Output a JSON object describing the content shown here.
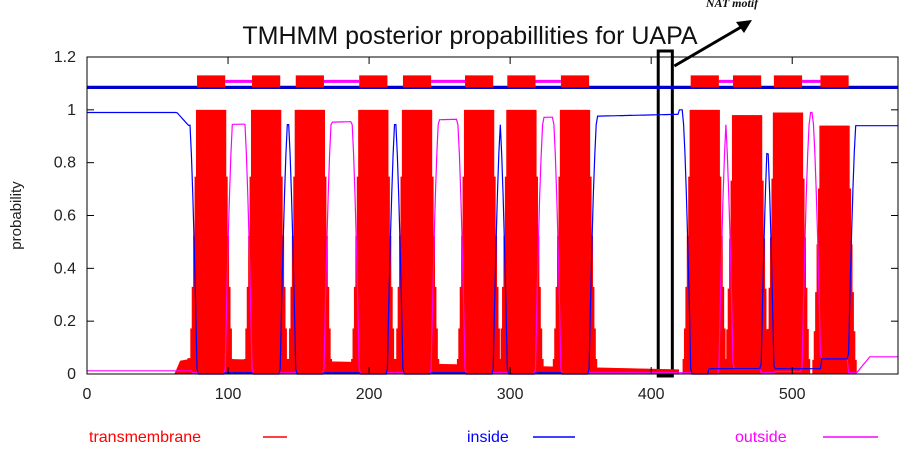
{
  "chart_data": {
    "type": "line",
    "title": "TMHMM posterior propabillities for UAPA",
    "ylabel": "probability",
    "xlabel": "",
    "xlim": [
      0,
      575
    ],
    "ylim": [
      0,
      1.2
    ],
    "xticks": [
      0,
      100,
      200,
      300,
      400,
      500
    ],
    "yticks": [
      0,
      0.2,
      0.4,
      0.6,
      0.8,
      1,
      1.2
    ],
    "ytick_labels": [
      "0",
      "0.2",
      "0.4",
      "0.6",
      "0.8",
      "1",
      "1.2"
    ],
    "grid": false,
    "legend_position": "bottom",
    "annotation": {
      "text": "NAT motif",
      "box_x": [
        405,
        415
      ]
    },
    "topology_y": 1.085,
    "series": [
      {
        "name": "transmembrane",
        "color": "#ff0000",
        "style": "filled",
        "helices": [
          {
            "start": 78,
            "end": 98,
            "peak": 1.0
          },
          {
            "start": 117,
            "end": 137,
            "peak": 1.0
          },
          {
            "start": 148,
            "end": 168,
            "peak": 1.0
          },
          {
            "start": 193,
            "end": 213,
            "peak": 1.0
          },
          {
            "start": 224,
            "end": 244,
            "peak": 1.0
          },
          {
            "start": 268,
            "end": 288,
            "peak": 1.0
          },
          {
            "start": 298,
            "end": 318,
            "peak": 1.0
          },
          {
            "start": 336,
            "end": 356,
            "peak": 1.0
          },
          {
            "start": 428,
            "end": 448,
            "peak": 1.0
          },
          {
            "start": 458,
            "end": 478,
            "peak": 0.98
          },
          {
            "start": 487,
            "end": 507,
            "peak": 0.99
          },
          {
            "start": 520,
            "end": 540,
            "peak": 0.94
          }
        ],
        "baseline": [
          [
            0,
            0
          ],
          [
            62,
            0
          ],
          [
            72,
            0.06
          ],
          [
            560,
            0.0
          ],
          [
            575,
            0.0
          ]
        ]
      },
      {
        "name": "inside",
        "color": "#0000ff",
        "topology_color": "#0000cc",
        "segments": [
          [
            0,
            78
          ],
          [
            137,
            148
          ],
          [
            213,
            224
          ],
          [
            288,
            298
          ],
          [
            356,
            428
          ],
          [
            478,
            487
          ],
          [
            540,
            575
          ]
        ],
        "levels": [
          0.99,
          1.0,
          1.0,
          1.0,
          1.0,
          1.0,
          0.94
        ]
      },
      {
        "name": "outside",
        "color": "#ff00ff",
        "topology_color": "#ff00ff",
        "segments": [
          [
            98,
            117
          ],
          [
            168,
            193
          ],
          [
            244,
            268
          ],
          [
            318,
            336
          ],
          [
            448,
            458
          ],
          [
            507,
            520
          ]
        ],
        "levels": [
          1.0,
          1.0,
          1.0,
          1.0,
          0.99,
          0.99
        ],
        "tail": {
          "from": 545,
          "level": 0.065
        }
      }
    ]
  }
}
